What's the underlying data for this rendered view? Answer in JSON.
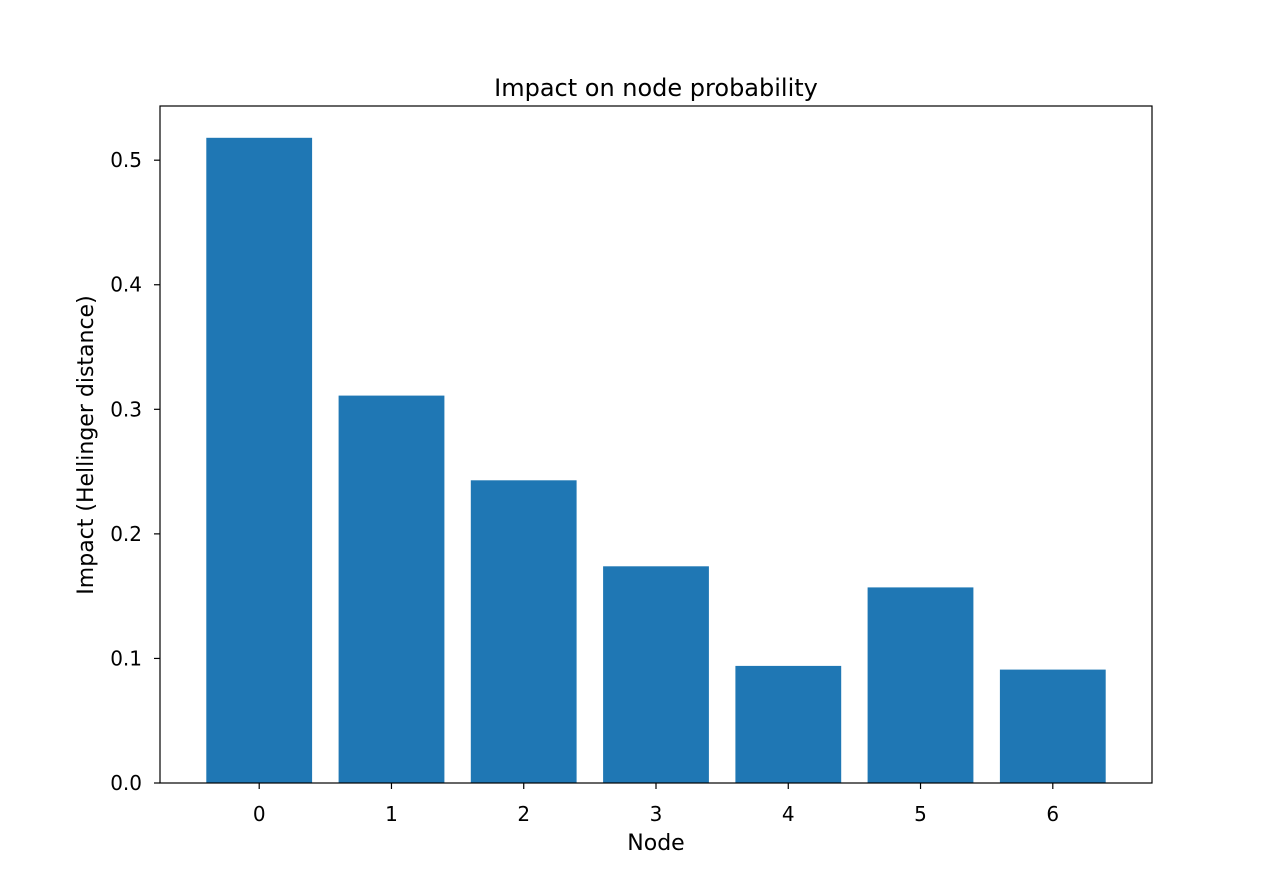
{
  "chart_data": {
    "type": "bar",
    "title": "Impact on node probability",
    "xlabel": "Node",
    "ylabel": "Impact (Hellinger distance)",
    "categories": [
      "0",
      "1",
      "2",
      "3",
      "4",
      "5",
      "6"
    ],
    "values": [
      0.518,
      0.311,
      0.243,
      0.174,
      0.094,
      0.157,
      0.091
    ],
    "ylim": [
      0,
      0.5435
    ],
    "yticks": [
      "0.0",
      "0.1",
      "0.2",
      "0.3",
      "0.4",
      "0.5"
    ],
    "grid": false,
    "bar_color": "#1f77b4"
  }
}
